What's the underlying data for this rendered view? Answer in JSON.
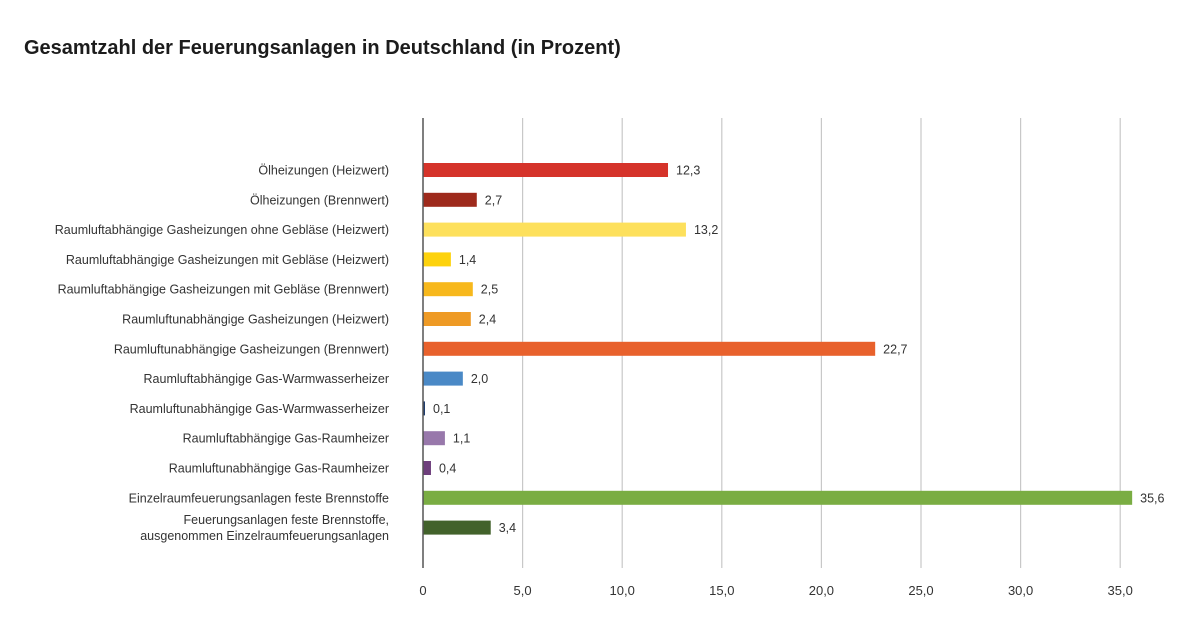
{
  "chart_data": {
    "type": "bar",
    "orientation": "horizontal",
    "title": "Gesamtzahl der Feuerungsanlagen in Deutschland (in Prozent)",
    "xlabel": "",
    "ylabel": "",
    "xlim": [
      0,
      37.5
    ],
    "xticks": [
      0,
      5,
      10,
      15,
      20,
      25,
      30,
      35
    ],
    "xtick_labels": [
      "0",
      "5,0",
      "10,0",
      "15,0",
      "20,0",
      "25,0",
      "30,0",
      "35,0"
    ],
    "grid": "vertical",
    "legend": "none",
    "categories": [
      "Ölheizungen (Heizwert)",
      "Ölheizungen (Brennwert)",
      "Raumluftabhängige Gasheizungen ohne Gebläse (Heizwert)",
      "Raumluftabhängige Gasheizungen mit Gebläse (Heizwert)",
      "Raumluftabhängige Gasheizungen mit Gebläse (Brennwert)",
      "Raumluftunabhängige Gasheizungen  (Heizwert)",
      "Raumluftunabhängige Gasheizungen  (Brennwert)",
      "Raumluftabhängige Gas-Warmwasserheizer",
      "Raumluftunabhängige Gas-Warmwasserheizer",
      "Raumluftabhängige Gas-Raumheizer",
      "Raumluftunabhängige Gas-Raumheizer",
      "Einzelraumfeuerungsanlagen feste Brennstoffe",
      "Feuerungsanlagen feste Brennstoffe,\nausgenommen Einzelraumfeuerungsanlagen"
    ],
    "values": [
      12.3,
      2.7,
      13.2,
      1.4,
      2.5,
      2.4,
      22.7,
      2.0,
      0.1,
      1.1,
      0.4,
      35.6,
      3.4
    ],
    "value_labels": [
      "12,3",
      "2,7",
      "13,2",
      "1,4",
      "2,5",
      "2,4",
      "22,7",
      "2,0",
      "0,1",
      "1,1",
      "0,4",
      "35,6",
      "3,4"
    ],
    "colors": [
      "#d5332a",
      "#9e2a1c",
      "#fde05c",
      "#fdd20d",
      "#f7b81c",
      "#ee9a25",
      "#e8612c",
      "#4a89c6",
      "#1f3d6e",
      "#9878ab",
      "#6e3f7c",
      "#7aad43",
      "#42622b"
    ],
    "axis_color": "#555555",
    "grid_color": "#c8c8c8"
  }
}
